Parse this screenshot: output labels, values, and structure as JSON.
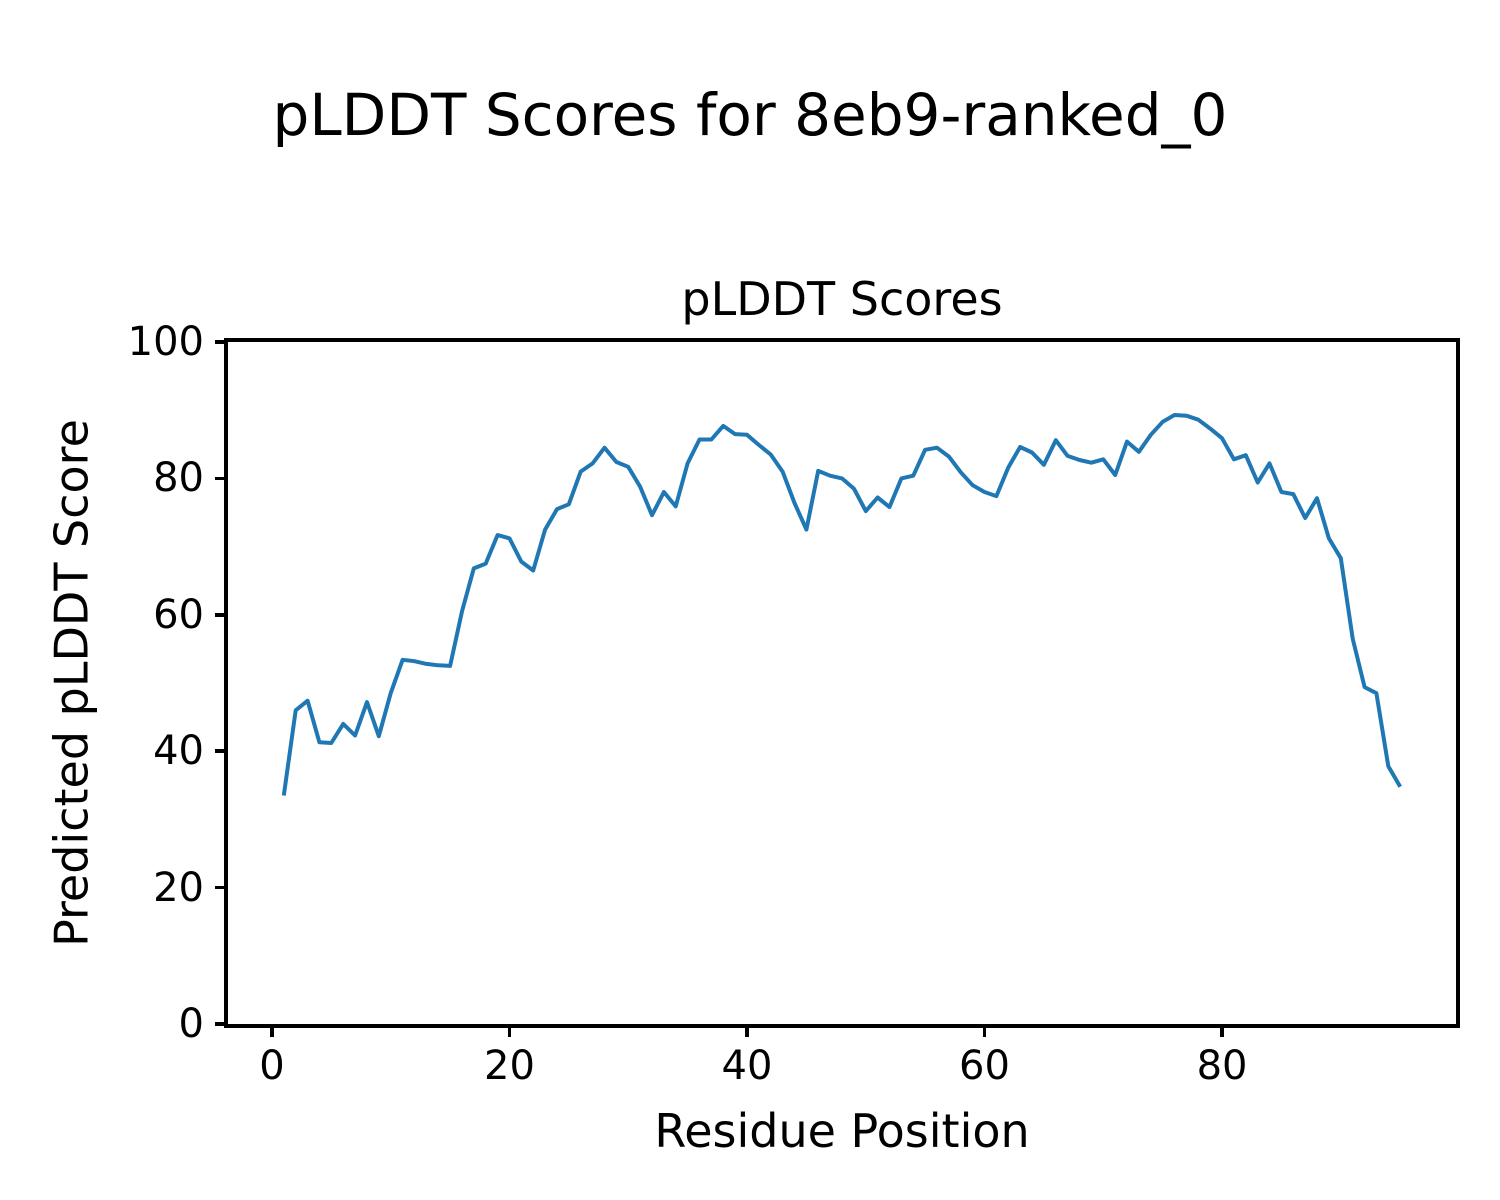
{
  "figure": {
    "suptitle": "pLDDT Scores for 8eb9-ranked_0",
    "axes_title": "pLDDT Scores",
    "xlabel": "Residue Position",
    "ylabel": "Predicted pLDDT Score"
  },
  "colors": {
    "line": "#1f77b4",
    "axis": "#000000",
    "background": "#ffffff"
  },
  "chart_data": {
    "type": "line",
    "title": "pLDDT Scores",
    "xlabel": "Residue Position",
    "ylabel": "Predicted pLDDT Score",
    "legend": null,
    "grid": false,
    "xlim": [
      -3.7,
      99.7
    ],
    "ylim": [
      0,
      100
    ],
    "x_ticks": [
      0,
      20,
      40,
      60,
      80
    ],
    "y_ticks": [
      0,
      20,
      40,
      60,
      80,
      100
    ],
    "x": [
      1,
      2,
      3,
      4,
      5,
      6,
      7,
      8,
      9,
      10,
      11,
      12,
      13,
      14,
      15,
      16,
      17,
      18,
      19,
      20,
      21,
      22,
      23,
      24,
      25,
      26,
      27,
      28,
      29,
      30,
      31,
      32,
      33,
      34,
      35,
      36,
      37,
      38,
      39,
      40,
      41,
      42,
      43,
      44,
      45,
      46,
      47,
      48,
      49,
      50,
      51,
      52,
      53,
      54,
      55,
      56,
      57,
      58,
      59,
      60,
      61,
      62,
      63,
      64,
      65,
      66,
      67,
      68,
      69,
      70,
      71,
      72,
      73,
      74,
      75,
      76,
      77,
      78,
      79,
      80,
      81,
      82,
      83,
      84,
      85,
      86,
      87,
      88,
      89,
      90,
      91,
      92,
      93,
      94,
      95
    ],
    "y": [
      33.5,
      46.0,
      47.4,
      41.3,
      41.2,
      44.0,
      42.3,
      47.2,
      42.2,
      48.5,
      53.4,
      53.2,
      52.8,
      52.6,
      52.5,
      60.5,
      66.8,
      67.5,
      71.7,
      71.2,
      67.8,
      66.5,
      72.5,
      75.5,
      76.2,
      81.0,
      82.2,
      84.5,
      82.4,
      81.7,
      78.8,
      74.6,
      78.0,
      75.9,
      82.2,
      85.7,
      85.7,
      87.7,
      86.5,
      86.4,
      84.9,
      83.5,
      81.0,
      76.4,
      72.5,
      81.1,
      80.4,
      80.0,
      78.5,
      75.2,
      77.2,
      75.8,
      80.0,
      80.4,
      84.2,
      84.5,
      83.2,
      80.9,
      79.0,
      78.0,
      77.4,
      81.6,
      84.6,
      83.8,
      82.0,
      85.6,
      83.3,
      82.7,
      82.3,
      82.8,
      80.5,
      85.4,
      83.9,
      86.4,
      88.3,
      89.3,
      89.2,
      88.6,
      87.3,
      85.9,
      82.8,
      83.4,
      79.4,
      82.2,
      78.0,
      77.7,
      74.2,
      77.1,
      71.2,
      68.3,
      56.5,
      49.4,
      48.5,
      37.8,
      34.8
    ]
  }
}
